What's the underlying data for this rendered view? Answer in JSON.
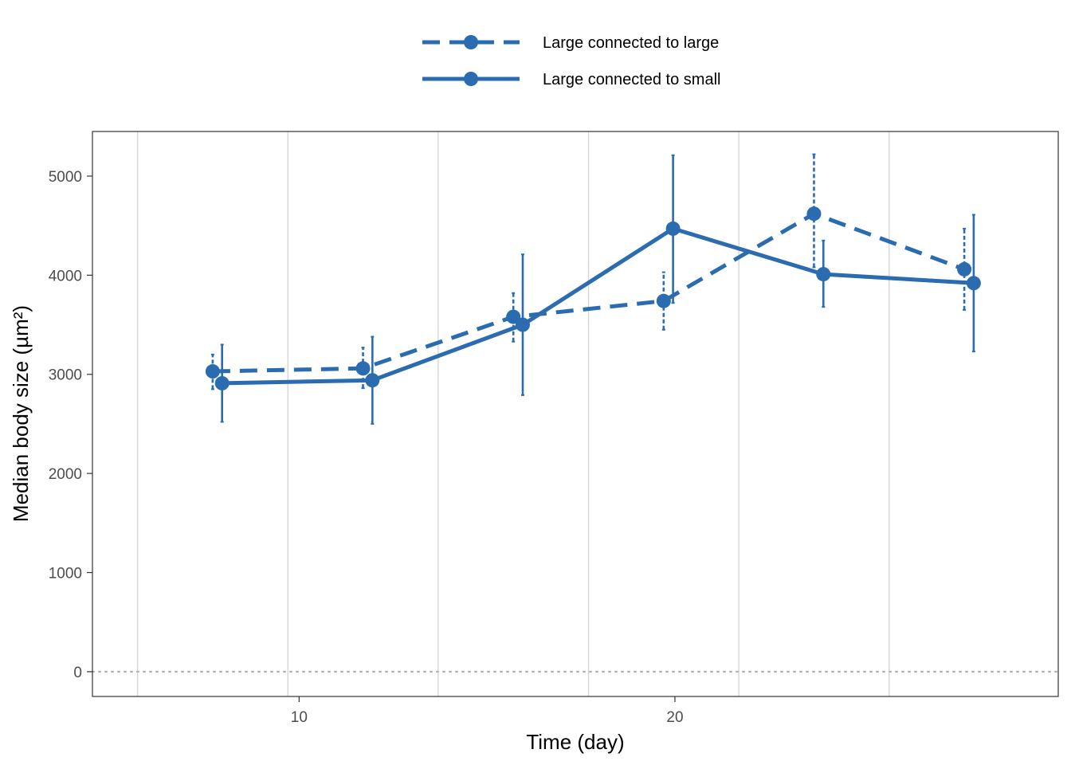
{
  "chart_data": {
    "type": "line",
    "xlabel": "Time (day)",
    "ylabel": "Median body size (µm²)",
    "xlim": [
      4.5,
      30.2
    ],
    "ylim": [
      -250,
      5450
    ],
    "x_ticks": [
      10,
      20
    ],
    "x_minor_grid": [
      5.7,
      9.7,
      13.7,
      17.7,
      21.7,
      25.7
    ],
    "y_ticks": [
      0,
      1000,
      2000,
      3000,
      4000,
      5000
    ],
    "reference_line": {
      "y": 0,
      "style": "dotted"
    },
    "grid": "vertical",
    "legend_position": "top",
    "series_color": "#2b6cb0",
    "series": [
      {
        "name": "Large connected to large",
        "linestyle": "dashed",
        "points": [
          {
            "x": 7.7,
            "y": 3030,
            "ylow": 2850,
            "yhigh": 3200
          },
          {
            "x": 11.7,
            "y": 3060,
            "ylow": 2860,
            "yhigh": 3270
          },
          {
            "x": 15.7,
            "y": 3580,
            "ylow": 3330,
            "yhigh": 3820
          },
          {
            "x": 19.7,
            "y": 3740,
            "ylow": 3450,
            "yhigh": 4030
          },
          {
            "x": 23.7,
            "y": 4620,
            "ylow": 4080,
            "yhigh": 5220
          },
          {
            "x": 27.7,
            "y": 4060,
            "ylow": 3650,
            "yhigh": 4470
          }
        ]
      },
      {
        "name": "Large connected to small",
        "linestyle": "solid",
        "points": [
          {
            "x": 7.95,
            "y": 2910,
            "ylow": 2520,
            "yhigh": 3300
          },
          {
            "x": 11.95,
            "y": 2940,
            "ylow": 2500,
            "yhigh": 3380
          },
          {
            "x": 15.95,
            "y": 3500,
            "ylow": 2790,
            "yhigh": 4210
          },
          {
            "x": 19.95,
            "y": 4470,
            "ylow": 3720,
            "yhigh": 5210
          },
          {
            "x": 23.95,
            "y": 4010,
            "ylow": 3680,
            "yhigh": 4350
          },
          {
            "x": 27.95,
            "y": 3920,
            "ylow": 3230,
            "yhigh": 4610
          }
        ]
      }
    ]
  }
}
